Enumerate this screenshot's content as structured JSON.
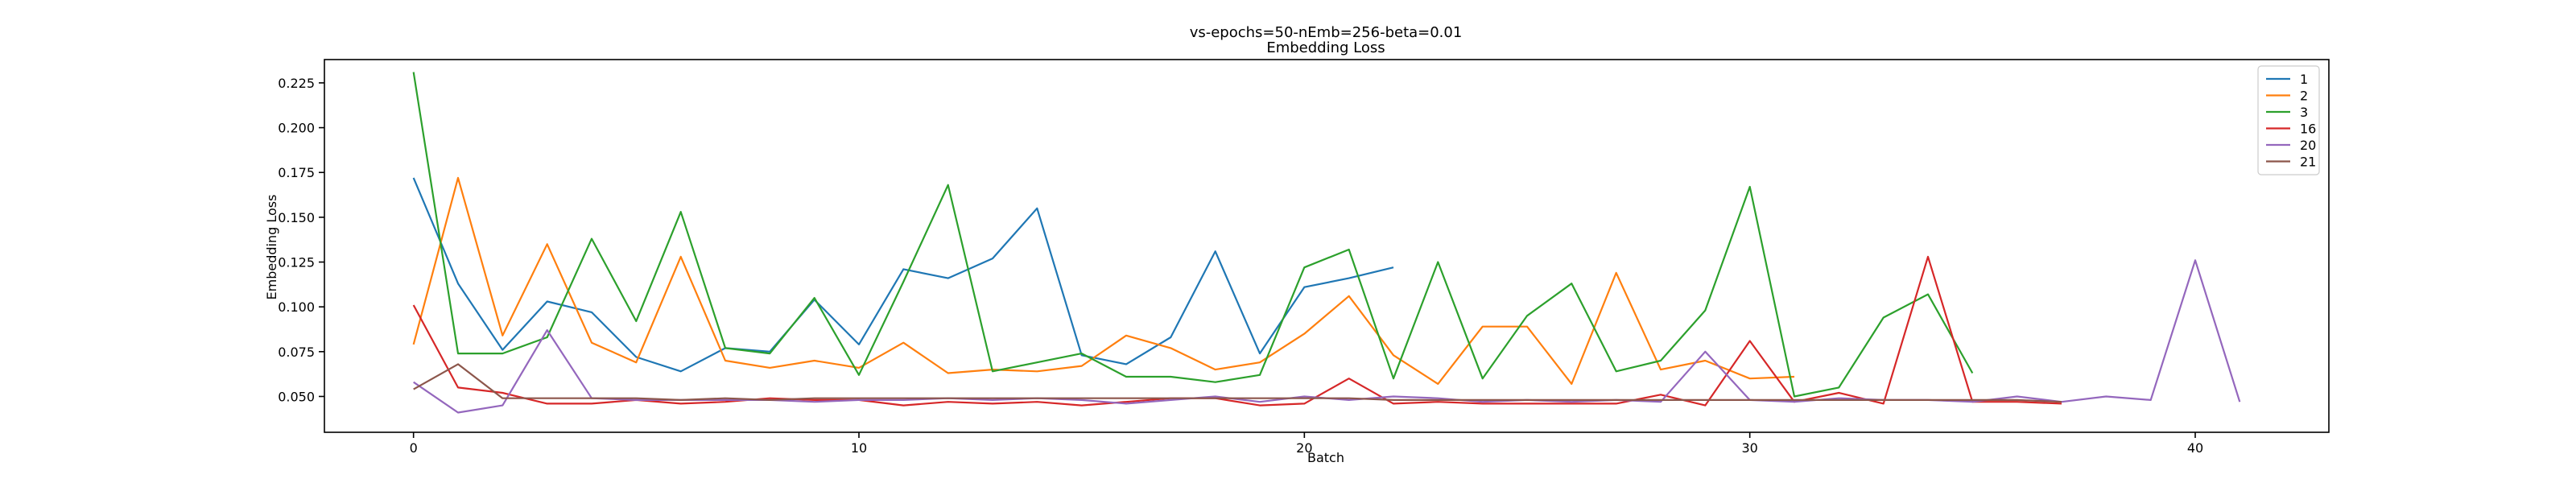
{
  "chart_data": {
    "type": "line",
    "title": "vs-epochs=50-nEmb=256-beta=0.01",
    "subtitle": "Embedding Loss",
    "xlabel": "Batch",
    "ylabel": "Embedding Loss",
    "xlim": [
      -2,
      43
    ],
    "ylim": [
      0.03,
      0.238
    ],
    "xticks": [
      0,
      10,
      20,
      30,
      40
    ],
    "yticks": [
      0.05,
      0.075,
      0.1,
      0.125,
      0.15,
      0.175,
      0.2,
      0.225
    ],
    "ytick_labels": [
      "0.050",
      "0.075",
      "0.100",
      "0.125",
      "0.150",
      "0.175",
      "0.200",
      "0.225"
    ],
    "grid": false,
    "legend_position": "top-right",
    "series": [
      {
        "name": "1",
        "color": "#1f77b4",
        "x": [
          0,
          1,
          2,
          3,
          4,
          5,
          6,
          7,
          8,
          9,
          10,
          11,
          12,
          13,
          14,
          15,
          16,
          17,
          18,
          19,
          20,
          21,
          22
        ],
        "y": [
          0.172,
          0.113,
          0.076,
          0.103,
          0.097,
          0.072,
          0.064,
          0.077,
          0.075,
          0.104,
          0.079,
          0.121,
          0.116,
          0.127,
          0.155,
          0.073,
          0.068,
          0.083,
          0.131,
          0.074,
          0.111,
          0.116,
          0.122
        ]
      },
      {
        "name": "2",
        "color": "#ff7f0e",
        "x": [
          0,
          1,
          2,
          3,
          4,
          5,
          6,
          7,
          8,
          9,
          10,
          11,
          12,
          13,
          14,
          15,
          16,
          17,
          18,
          19,
          20,
          21,
          22,
          23,
          24,
          25,
          26,
          27,
          28,
          29,
          30,
          31
        ],
        "y": [
          0.079,
          0.172,
          0.084,
          0.135,
          0.08,
          0.069,
          0.128,
          0.07,
          0.066,
          0.07,
          0.066,
          0.08,
          0.063,
          0.065,
          0.064,
          0.067,
          0.084,
          0.077,
          0.065,
          0.069,
          0.085,
          0.106,
          0.073,
          0.057,
          0.089,
          0.089,
          0.057,
          0.119,
          0.065,
          0.07,
          0.06,
          0.061
        ]
      },
      {
        "name": "3",
        "color": "#2ca02c",
        "x": [
          0,
          1,
          2,
          3,
          4,
          5,
          6,
          7,
          8,
          9,
          10,
          11,
          12,
          13,
          14,
          15,
          16,
          17,
          18,
          19,
          20,
          21,
          22,
          23,
          24,
          25,
          26,
          27,
          28,
          29,
          30,
          31,
          32,
          33,
          34,
          35
        ],
        "y": [
          0.231,
          0.074,
          0.074,
          0.083,
          0.138,
          0.092,
          0.153,
          0.077,
          0.074,
          0.105,
          0.062,
          0.114,
          0.168,
          0.064,
          0.069,
          0.074,
          0.061,
          0.061,
          0.058,
          0.062,
          0.122,
          0.132,
          0.06,
          0.125,
          0.06,
          0.095,
          0.113,
          0.064,
          0.07,
          0.098,
          0.167,
          0.05,
          0.055,
          0.094,
          0.107,
          0.063
        ]
      },
      {
        "name": "16",
        "color": "#d62728",
        "x": [
          0,
          1,
          2,
          3,
          4,
          5,
          6,
          7,
          8,
          9,
          10,
          11,
          12,
          13,
          14,
          15,
          16,
          17,
          18,
          19,
          20,
          21,
          22,
          23,
          24,
          25,
          26,
          27,
          28,
          29,
          30,
          31,
          32,
          33,
          34,
          35,
          36,
          37
        ],
        "y": [
          0.101,
          0.055,
          0.052,
          0.046,
          0.046,
          0.048,
          0.046,
          0.047,
          0.049,
          0.048,
          0.048,
          0.045,
          0.047,
          0.046,
          0.047,
          0.045,
          0.047,
          0.049,
          0.049,
          0.045,
          0.046,
          0.06,
          0.046,
          0.047,
          0.046,
          0.046,
          0.046,
          0.046,
          0.051,
          0.045,
          0.081,
          0.047,
          0.052,
          0.046,
          0.128,
          0.047,
          0.047,
          0.046
        ]
      },
      {
        "name": "20",
        "color": "#9467bd",
        "x": [
          0,
          1,
          2,
          3,
          4,
          5,
          6,
          7,
          8,
          9,
          10,
          11,
          12,
          13,
          14,
          15,
          16,
          17,
          18,
          19,
          20,
          21,
          22,
          23,
          24,
          25,
          26,
          27,
          28,
          29,
          30,
          31,
          32,
          33,
          34,
          35,
          36,
          37,
          38,
          39,
          40,
          41
        ],
        "y": [
          0.058,
          0.041,
          0.045,
          0.087,
          0.049,
          0.048,
          0.048,
          0.048,
          0.048,
          0.047,
          0.048,
          0.048,
          0.049,
          0.048,
          0.049,
          0.048,
          0.046,
          0.048,
          0.05,
          0.047,
          0.05,
          0.048,
          0.05,
          0.049,
          0.047,
          0.048,
          0.047,
          0.048,
          0.047,
          0.075,
          0.048,
          0.047,
          0.049,
          0.048,
          0.048,
          0.047,
          0.05,
          0.047,
          0.05,
          0.048,
          0.126,
          0.047
        ]
      },
      {
        "name": "21",
        "color": "#8c564b",
        "x": [
          0,
          1,
          2,
          3,
          4,
          5,
          6,
          7,
          8,
          9,
          10,
          11,
          12,
          13,
          14,
          15,
          16,
          17,
          18,
          19,
          20,
          21,
          22,
          23,
          24,
          25,
          26,
          27,
          28,
          29,
          30,
          31,
          32,
          33,
          34,
          35,
          36,
          37
        ],
        "y": [
          0.054,
          0.068,
          0.049,
          0.049,
          0.049,
          0.049,
          0.048,
          0.049,
          0.048,
          0.049,
          0.049,
          0.049,
          0.049,
          0.049,
          0.049,
          0.049,
          0.049,
          0.049,
          0.049,
          0.049,
          0.049,
          0.049,
          0.048,
          0.048,
          0.048,
          0.048,
          0.048,
          0.048,
          0.048,
          0.048,
          0.048,
          0.048,
          0.048,
          0.048,
          0.048,
          0.048,
          0.048,
          0.047
        ]
      }
    ]
  }
}
